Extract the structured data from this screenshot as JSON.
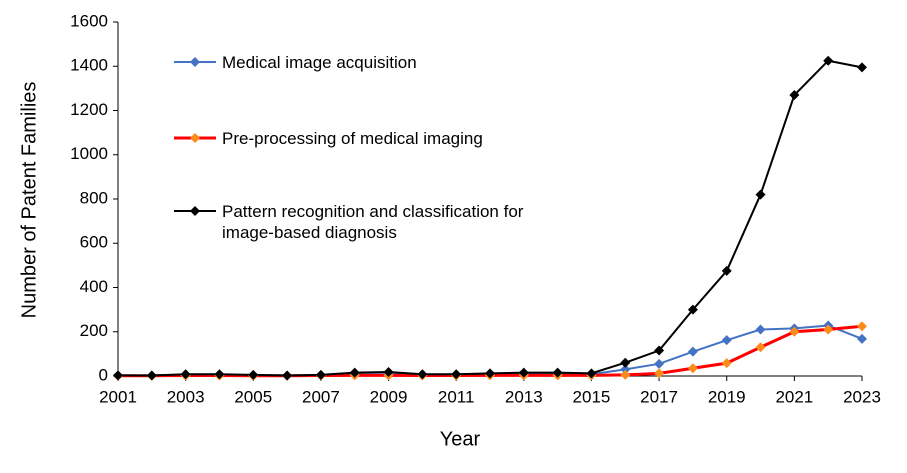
{
  "chart_data": {
    "type": "line",
    "x_label": "Year",
    "y_label": "Number of Patent Families",
    "x": [
      2001,
      2002,
      2003,
      2004,
      2005,
      2006,
      2007,
      2008,
      2009,
      2010,
      2011,
      2012,
      2013,
      2014,
      2015,
      2016,
      2017,
      2018,
      2019,
      2020,
      2021,
      2022,
      2023
    ],
    "xlim": [
      2001,
      2023
    ],
    "xticks": [
      2001,
      2003,
      2005,
      2007,
      2009,
      2011,
      2013,
      2015,
      2017,
      2019,
      2021,
      2023
    ],
    "ylim": [
      0,
      1600
    ],
    "yticks": [
      0,
      200,
      400,
      600,
      800,
      1000,
      1200,
      1400,
      1600
    ],
    "grid": false,
    "legend": "upper left",
    "series": [
      {
        "name": "Medical image acquisition",
        "color": "#4472c4",
        "marker_color": "#4472c4",
        "values": [
          2,
          2,
          5,
          5,
          3,
          1,
          3,
          8,
          8,
          5,
          5,
          8,
          10,
          10,
          8,
          30,
          55,
          110,
          162,
          210,
          215,
          228,
          168
        ]
      },
      {
        "name": "Pre-processing of medical imaging",
        "color": "#ff0000",
        "marker_color": "#ff8c1a",
        "values": [
          1,
          1,
          2,
          2,
          1,
          1,
          2,
          3,
          3,
          2,
          2,
          3,
          3,
          3,
          3,
          5,
          12,
          35,
          58,
          130,
          200,
          210,
          225
        ]
      },
      {
        "name": "Pattern recognition and classification for image-based diagnosis",
        "color": "#000000",
        "marker_color": "#000000",
        "values": [
          3,
          2,
          8,
          8,
          5,
          2,
          5,
          15,
          18,
          8,
          8,
          12,
          15,
          15,
          12,
          60,
          115,
          300,
          475,
          820,
          1270,
          1425,
          1395
        ]
      }
    ]
  }
}
